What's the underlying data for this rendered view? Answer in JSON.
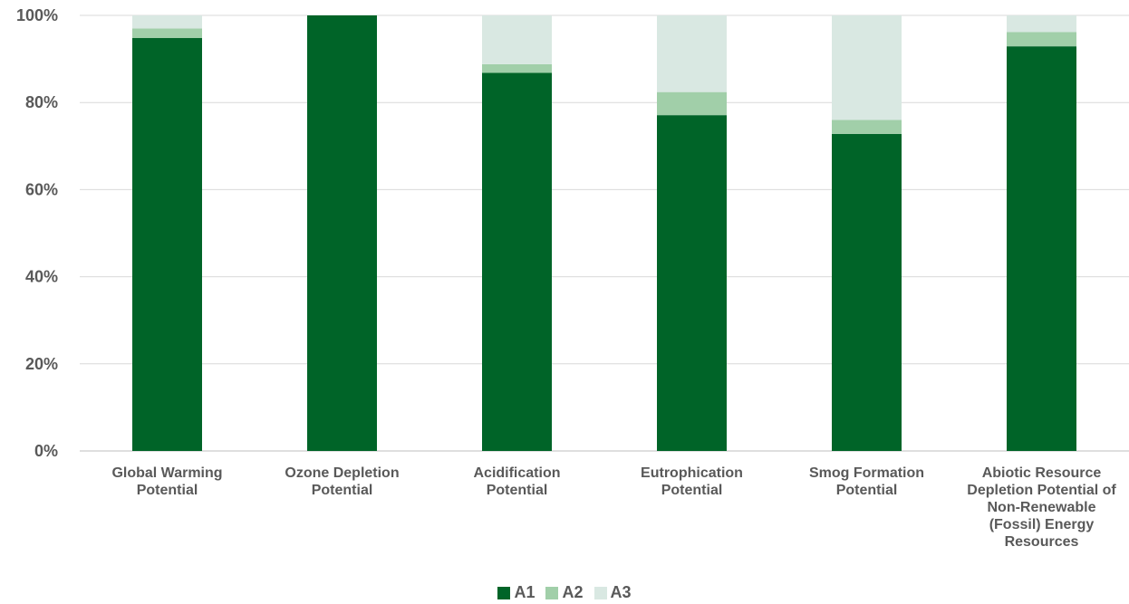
{
  "chart_data": {
    "type": "bar",
    "stacked": true,
    "categories": [
      [
        "Global Warming",
        "Potential"
      ],
      [
        "Ozone Depletion",
        "Potential"
      ],
      [
        "Acidification",
        "Potential"
      ],
      [
        "Eutrophication",
        "Potential"
      ],
      [
        "Smog Formation",
        "Potential"
      ],
      [
        "Abiotic Resource",
        "Depletion Potential of",
        "Non-Renewable",
        "(Fossil) Energy",
        "Resources"
      ]
    ],
    "series": [
      {
        "name": "A1",
        "color": "#006428",
        "values": [
          94.8,
          100,
          86.8,
          77.1,
          72.8,
          92.9
        ]
      },
      {
        "name": "A2",
        "color": "#a1cfa9",
        "values": [
          2.2,
          0,
          2.0,
          5.3,
          3.2,
          3.3
        ]
      },
      {
        "name": "A3",
        "color": "#d9e8e2",
        "values": [
          3.0,
          0,
          11.2,
          17.6,
          24.0,
          3.8
        ]
      }
    ],
    "yticks": [
      "0%",
      "20%",
      "40%",
      "60%",
      "80%",
      "100%"
    ],
    "ylim": [
      0,
      100
    ],
    "grid": true,
    "legend_position": "bottom"
  }
}
